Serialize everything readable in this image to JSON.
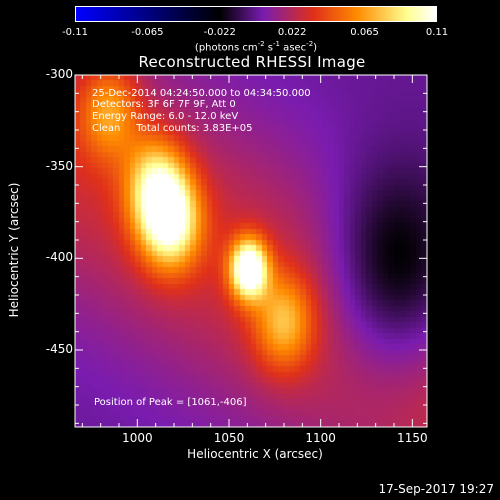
{
  "colorbar": {
    "ticks": [
      "-0.11",
      "-0.065",
      "-0.022",
      "0.022",
      "0.065",
      "0.11"
    ],
    "unit_pre": "(photons cm",
    "unit_sup1": "-2",
    "unit_mid1": " s",
    "unit_sup2": "-1",
    "unit_mid2": " asec",
    "unit_sup3": "-2",
    "unit_post": ")",
    "min": -0.11,
    "max": 0.11,
    "colormap": [
      "#0000ff",
      "#000000",
      "#7a1cb0",
      "#e0301a",
      "#ff8a00",
      "#ffff90",
      "#ffffff"
    ]
  },
  "chart_data": {
    "type": "heatmap",
    "title": "Reconstructed RHESSI Image",
    "xlabel": "Heliocentric X (arcsec)",
    "ylabel": "Heliocentric Y (arcsec)",
    "xlim": [
      966,
      1158
    ],
    "ylim": [
      -492,
      -300
    ],
    "x_ticks": [
      "1000",
      "1050",
      "1100",
      "1150"
    ],
    "x_tick_values": [
      1000,
      1050,
      1100,
      1150
    ],
    "y_ticks": [
      "-300",
      "-350",
      "-400",
      "-450"
    ],
    "y_tick_values": [
      -300,
      -350,
      -400,
      -450
    ],
    "peak": {
      "x": 1061,
      "y": -406,
      "value": 0.11
    },
    "sources": [
      {
        "x": 1061,
        "y": -406,
        "amp": 0.11
      },
      {
        "x": 1018,
        "y": -380,
        "amp": 0.085
      },
      {
        "x": 1010,
        "y": -360,
        "amp": 0.06
      },
      {
        "x": 985,
        "y": -320,
        "amp": 0.045
      },
      {
        "x": 1080,
        "y": -435,
        "amp": 0.05
      }
    ],
    "minimum": {
      "x": 1140,
      "y": -410,
      "value": -0.04
    },
    "annotations": {
      "time_range": "25-Dec-2014 04:24:50.000 to 04:34:50.000",
      "detectors": "Detectors: 3F 6F 7F 9F, Att 0",
      "energy": "Energy Range: 6.0 - 12.0 keV",
      "method": "Clean",
      "counts": "Total counts: 3.83E+05",
      "peak_text": "Position of Peak = [1061,-406]"
    }
  },
  "date_stamp": "17-Sep-2017 19:27"
}
